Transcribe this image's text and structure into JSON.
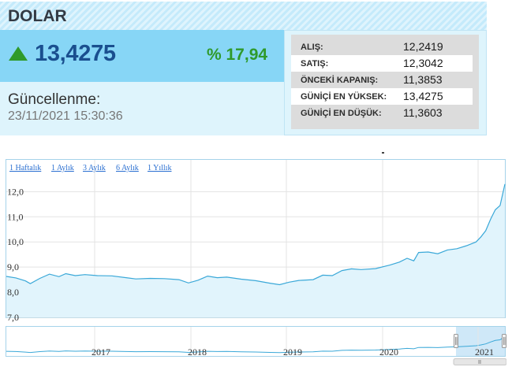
{
  "widget": {
    "title": "DOLAR",
    "price": "13,4275",
    "change": "% 17,94",
    "update_label": "Güncellenme:",
    "update_time": "23/11/2021 15:30:36",
    "colors": {
      "accent": "#87d6f6",
      "price": "#1a4f8f",
      "up": "#2f9a2b"
    },
    "stats": [
      {
        "label": "ALIŞ:",
        "value": "12,2419"
      },
      {
        "label": "SATIŞ:",
        "value": "12,3042"
      },
      {
        "label": "ÖNCEKİ KAPANIŞ:",
        "value": "11,3853"
      },
      {
        "label": "GÜNİÇİ EN YÜKSEK:",
        "value": "13,4275"
      },
      {
        "label": "GÜNİÇİ EN DÜŞÜK:",
        "value": "11,3603"
      }
    ]
  },
  "range_buttons": [
    "1 Haftalık",
    "1 Aylık",
    "3 Aylık",
    "6 Aylık",
    "1 Yıllık"
  ],
  "chart_data": {
    "type": "area",
    "title": "",
    "xlabel": "",
    "ylabel": "",
    "ylim": [
      7.0,
      12.5
    ],
    "y_ticks": [
      "7,0",
      "8,0",
      "9,0",
      "10,0",
      "11,0",
      "12,0"
    ],
    "x_ticks": [
      "2017",
      "2018",
      "2019",
      "2020",
      "2021"
    ],
    "grid": true,
    "series": [
      {
        "values": [
          [
            2016.0,
            8.63
          ],
          [
            2016.1,
            8.57
          ],
          [
            2016.2,
            8.45
          ],
          [
            2016.25,
            8.34
          ],
          [
            2016.35,
            8.55
          ],
          [
            2016.45,
            8.72
          ],
          [
            2016.55,
            8.62
          ],
          [
            2016.62,
            8.74
          ],
          [
            2016.72,
            8.66
          ],
          [
            2016.82,
            8.7
          ],
          [
            2016.95,
            8.66
          ],
          [
            2017.1,
            8.65
          ],
          [
            2017.25,
            8.58
          ],
          [
            2017.35,
            8.53
          ],
          [
            2017.5,
            8.55
          ],
          [
            2017.65,
            8.54
          ],
          [
            2017.8,
            8.5
          ],
          [
            2017.9,
            8.37
          ],
          [
            2018.0,
            8.48
          ],
          [
            2018.1,
            8.64
          ],
          [
            2018.2,
            8.58
          ],
          [
            2018.3,
            8.6
          ],
          [
            2018.45,
            8.52
          ],
          [
            2018.6,
            8.46
          ],
          [
            2018.75,
            8.36
          ],
          [
            2018.85,
            8.3
          ],
          [
            2018.95,
            8.4
          ],
          [
            2019.05,
            8.47
          ],
          [
            2019.2,
            8.5
          ],
          [
            2019.3,
            8.68
          ],
          [
            2019.4,
            8.66
          ],
          [
            2019.5,
            8.86
          ],
          [
            2019.6,
            8.93
          ],
          [
            2019.7,
            8.9
          ],
          [
            2019.85,
            8.94
          ],
          [
            2020.0,
            9.08
          ],
          [
            2020.1,
            9.2
          ],
          [
            2020.18,
            9.35
          ],
          [
            2020.25,
            9.25
          ],
          [
            2020.3,
            9.58
          ],
          [
            2020.4,
            9.6
          ],
          [
            2020.5,
            9.53
          ],
          [
            2020.6,
            9.68
          ],
          [
            2020.7,
            9.73
          ],
          [
            2020.8,
            9.85
          ],
          [
            2020.9,
            10.0
          ],
          [
            2020.95,
            10.2
          ],
          [
            2021.0,
            10.45
          ],
          [
            2021.05,
            10.9
          ],
          [
            2021.1,
            11.28
          ],
          [
            2021.15,
            11.45
          ],
          [
            2021.2,
            12.3
          ]
        ]
      }
    ]
  }
}
